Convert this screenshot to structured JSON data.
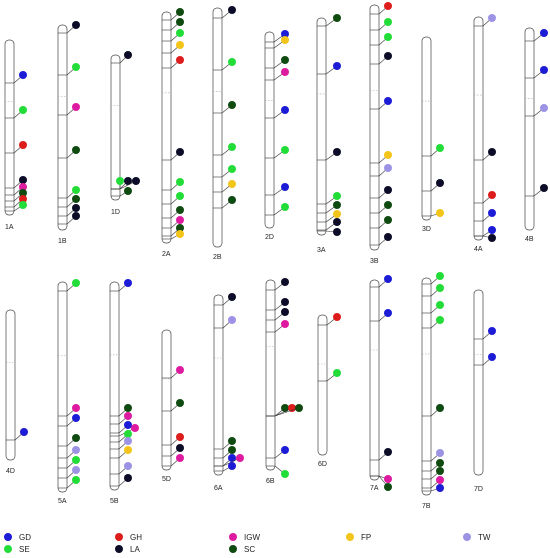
{
  "legend": [
    {
      "label": "GD",
      "color": "#1c1cd6"
    },
    {
      "label": "GH",
      "color": "#dd1c1c"
    },
    {
      "label": "IGW",
      "color": "#de1aa0"
    },
    {
      "label": "FP",
      "color": "#f3c41a"
    },
    {
      "label": "TW",
      "color": "#9c93e4"
    },
    {
      "label": "SE",
      "color": "#22dd38"
    },
    {
      "label": "LA",
      "color": "#0c0c28"
    },
    {
      "label": "SC",
      "color": "#0f4a10"
    }
  ],
  "chromosomes": [
    {
      "label": "1A",
      "qtl": [
        "GD",
        "SE",
        "GH",
        "LA",
        "IGW",
        "SC",
        "GH",
        "SE"
      ]
    },
    {
      "label": "1B",
      "qtl": [
        "LA",
        "SE",
        "IGW",
        "SC",
        "SE",
        "SC",
        "LA",
        "LA"
      ]
    },
    {
      "label": "1D",
      "qtl": [
        "LA",
        "SE",
        "LA",
        "LA",
        "SC"
      ]
    },
    {
      "label": "2A",
      "qtl": [
        "SC",
        "SC",
        "SE",
        "FP",
        "GH",
        "LA",
        "SE",
        "SE",
        "SC",
        "IGW",
        "SC",
        "FP"
      ]
    },
    {
      "label": "2B",
      "qtl": [
        "LA",
        "SE",
        "SC",
        "SE",
        "SE",
        "FP",
        "SC"
      ]
    },
    {
      "label": "2D",
      "qtl": [
        "GD",
        "FP",
        "SC",
        "IGW",
        "GD",
        "SE",
        "GD",
        "SE"
      ]
    },
    {
      "label": "3A",
      "qtl": [
        "SC",
        "GD",
        "LA",
        "SE",
        "SC",
        "FP",
        "LA",
        "LA"
      ]
    },
    {
      "label": "3B",
      "qtl": [
        "GH",
        "SE",
        "SE",
        "LA",
        "GD",
        "FP",
        "TW",
        "LA",
        "SC",
        "SC",
        "LA"
      ]
    },
    {
      "label": "3D",
      "qtl": [
        "SE",
        "LA",
        "FP"
      ]
    },
    {
      "label": "4A",
      "qtl": [
        "TW",
        "LA",
        "GH",
        "GD",
        "GD",
        "LA"
      ]
    },
    {
      "label": "4B",
      "qtl": [
        "GD",
        "GD",
        "TW",
        "LA"
      ]
    },
    {
      "label": "4D",
      "qtl": [
        "GD"
      ]
    },
    {
      "label": "5A",
      "qtl": [
        "SE",
        "IGW",
        "GD",
        "SC",
        "TW",
        "SE",
        "TW",
        "SE"
      ]
    },
    {
      "label": "5B",
      "qtl": [
        "GD",
        "SC",
        "IGW",
        "GD",
        "IGW",
        "SE",
        "TW",
        "FP",
        "TW",
        "LA"
      ]
    },
    {
      "label": "5D",
      "qtl": [
        "IGW",
        "SC",
        "GH",
        "LA",
        "IGW"
      ]
    },
    {
      "label": "6A",
      "qtl": [
        "LA",
        "TW",
        "SC",
        "SC",
        "GD",
        "IGW",
        "GD"
      ]
    },
    {
      "label": "6B",
      "qtl": [
        "LA",
        "LA",
        "LA",
        "IGW",
        "SC",
        "GH",
        "SC",
        "GD",
        "SE"
      ]
    },
    {
      "label": "6D",
      "qtl": [
        "GH",
        "SE"
      ]
    },
    {
      "label": "7A",
      "qtl": [
        "GD",
        "GD",
        "LA",
        "IGW",
        "SC"
      ]
    },
    {
      "label": "7B",
      "qtl": [
        "SE",
        "SE",
        "SE",
        "SE",
        "SC",
        "TW",
        "SC",
        "SC",
        "IGW",
        "GD"
      ]
    },
    {
      "label": "7D",
      "qtl": [
        "GD",
        "GD"
      ]
    }
  ]
}
